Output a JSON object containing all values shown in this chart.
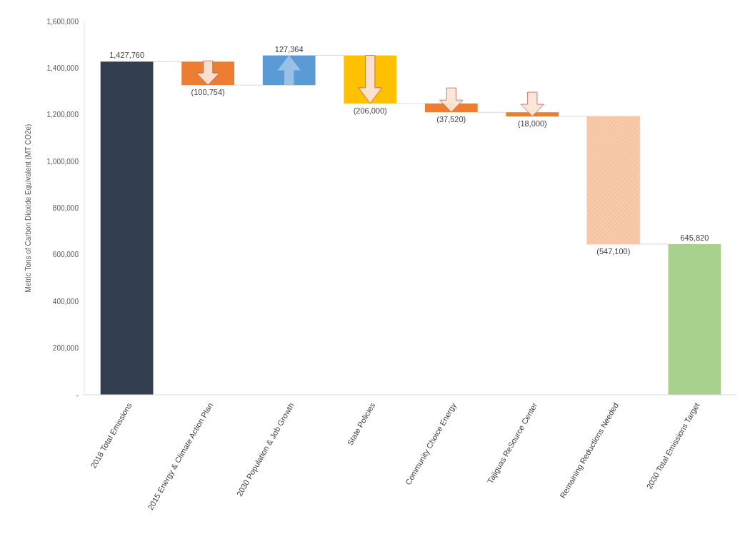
{
  "chart_data": {
    "type": "bar",
    "ylabel": "Metric Tons of Carbon Dioxide Equivalent (MT CO2e)",
    "categories": [
      "2018 Total Emissions",
      "2015 Energy & Climate Action Plan",
      "2030 Population & Job Growth",
      "State Policies",
      "Community Choice Energy",
      "Tajiguas ReSource Center",
      "Remaining Reductions Needed",
      "2030 Total Emissions Target"
    ],
    "values": [
      1427760,
      -100754,
      127364,
      -206000,
      -37520,
      -18000,
      -547100,
      645820
    ],
    "base": [
      0,
      1427760,
      1327006,
      1454370,
      1248370,
      1210850,
      1192850,
      0
    ],
    "colors": [
      "#333f50",
      "#ed7d31",
      "#5b9bd5",
      "#ffc000",
      "#ed7d31",
      "#ed7d31",
      "#f8cbad",
      "#a9d18e"
    ],
    "value_labels": [
      "1,427,760",
      "(100,754)",
      "127,364",
      "(206,000)",
      "(37,520)",
      "(18,000)",
      "(547,100)",
      "645,820"
    ],
    "ylim": [
      0,
      1600000
    ],
    "yticks": [
      {
        "value": 0,
        "label": "-"
      },
      {
        "value": 200000,
        "label": "200,000"
      },
      {
        "value": 400000,
        "label": "400,000"
      },
      {
        "value": 600000,
        "label": "600,000"
      },
      {
        "value": 800000,
        "label": "800,000"
      },
      {
        "value": 1000000,
        "label": "1,000,000"
      },
      {
        "value": 1200000,
        "label": "1,200,000"
      },
      {
        "value": 1400000,
        "label": "1,400,000"
      },
      {
        "value": 1600000,
        "label": "1,600,000"
      }
    ],
    "grid": false
  }
}
